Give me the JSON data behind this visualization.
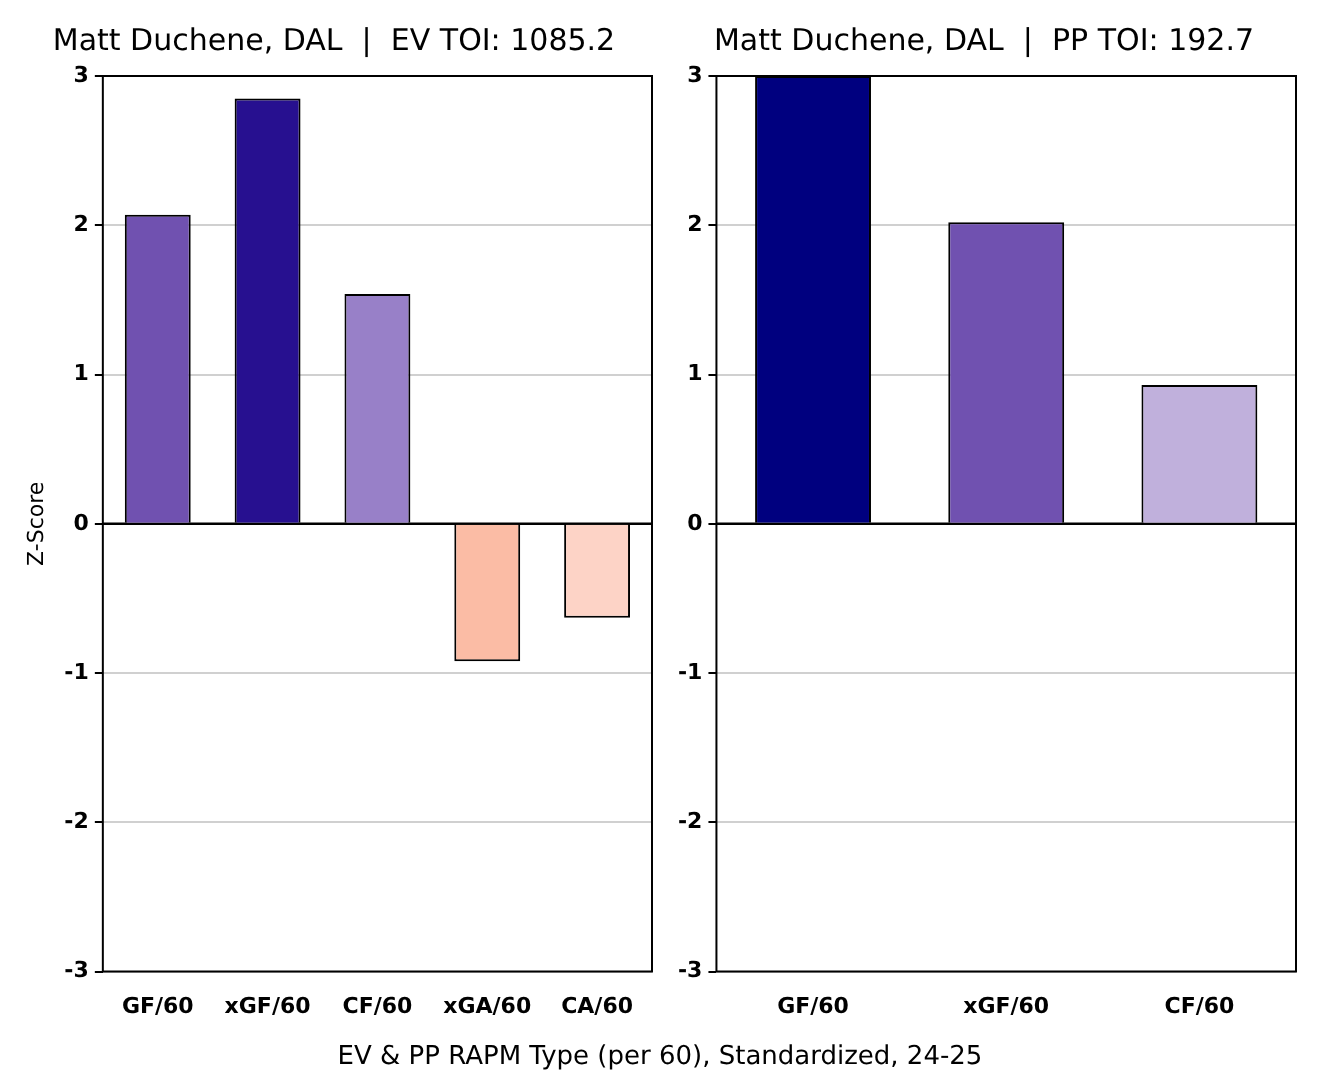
{
  "chart_data": [
    {
      "type": "bar",
      "title": "Matt Duchene, DAL  |  EV TOI: 1085.2",
      "ylabel": "Z-Score",
      "categories": [
        "GF/60",
        "xGF/60",
        "CF/60",
        "xGA/60",
        "CA/60"
      ],
      "values": [
        2.07,
        2.85,
        1.54,
        -0.92,
        -0.63
      ],
      "colors": [
        "#7051b0",
        "#271090",
        "#9880c8",
        "#fbbca5",
        "#fdd3c6"
      ],
      "ylim": [
        -3,
        3
      ],
      "yticks": [
        -3,
        -2,
        -1,
        0,
        1,
        2,
        3
      ],
      "grid": "y",
      "ref_lines": [
        {
          "axis": "y",
          "value": 0,
          "color": "#000000"
        }
      ],
      "annotations": [
        "EV & PP RAPM Type (per 60), Standardized, 24-25"
      ]
    },
    {
      "type": "bar",
      "title": "Matt Duchene, DAL  |  PP TOI: 192.7",
      "categories": [
        "GF/60",
        "xGF/60",
        "CF/60"
      ],
      "values": [
        3.0,
        2.02,
        0.93
      ],
      "colors": [
        "#00007f",
        "#7051b0",
        "#c0b0dc"
      ],
      "ylim": [
        -3,
        3
      ],
      "yticks": [
        -3,
        -2,
        -1,
        0,
        1,
        2,
        3
      ],
      "grid": "y",
      "ref_lines": [
        {
          "axis": "y",
          "value": 0,
          "color": "#000000"
        }
      ]
    }
  ]
}
